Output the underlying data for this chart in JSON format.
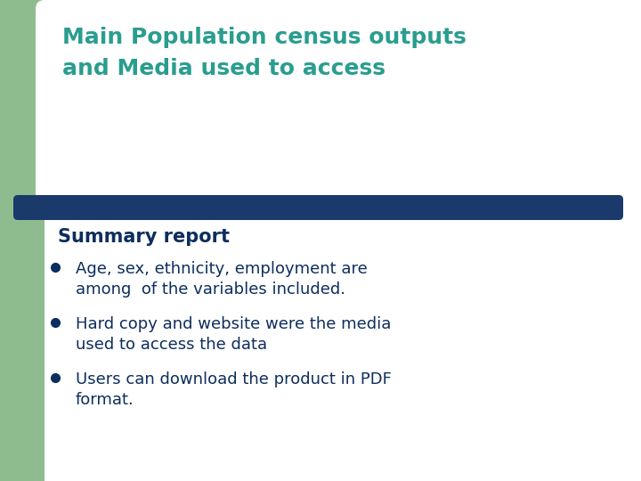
{
  "title_line1": "Main Population census outputs",
  "title_line2": "and Media used to access",
  "title_color": "#2A9D8F",
  "section_header": "Summary report",
  "section_header_color": "#0D2D5E",
  "bullet_points": [
    "Age, sex, ethnicity, employment are\namong  of the variables included.",
    "Hard copy and website were the media\nused to access the data",
    "Users can download the product in PDF\nformat."
  ],
  "bullet_color": "#0D2D5E",
  "left_bar_color": "#8FBC8F",
  "divider_color": "#1A3A6B",
  "background_color": "#FFFFFF",
  "title_fontsize": 18,
  "section_fontsize": 15,
  "bullet_fontsize": 13
}
